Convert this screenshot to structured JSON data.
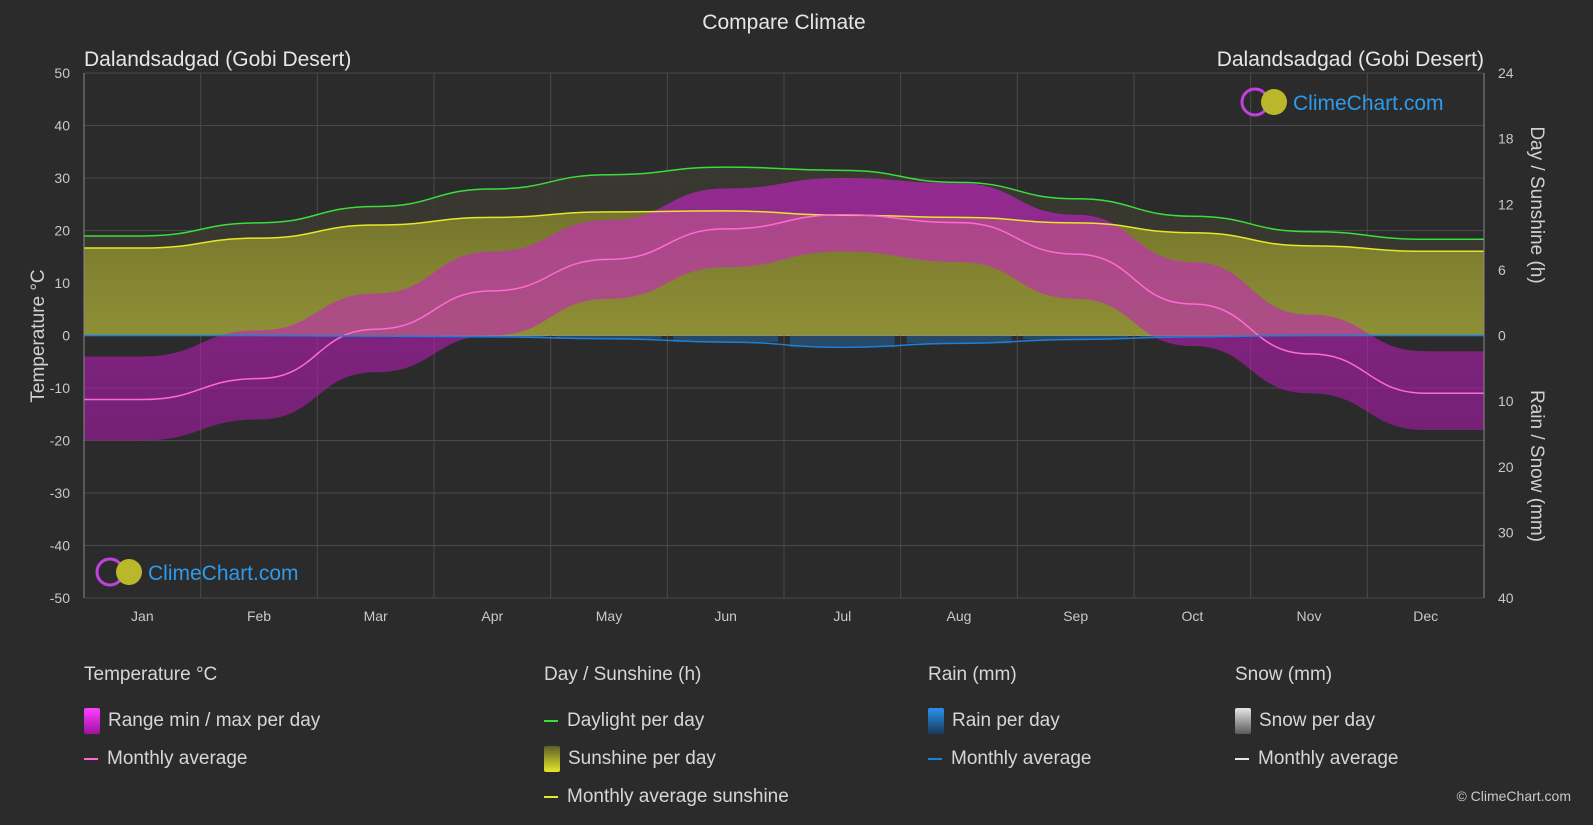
{
  "title": "Compare Climate",
  "location_left": "Dalandsadgad (Gobi Desert)",
  "location_right": "Dalandsadgad (Gobi Desert)",
  "watermark": "ClimeChart.com",
  "copyright": "© ClimeChart.com",
  "colors": {
    "background": "#2b2b2b",
    "daylight": "#3ddc3d",
    "sunshine_avg": "#e6e62a",
    "temp_avg": "#ff6ad5",
    "temp_range": "#e01ee0",
    "rain": "#1f7fd8",
    "snow": "#9a9a9a",
    "watermark": "#2e9bea"
  },
  "legend": {
    "temperature": {
      "header": "Temperature °C",
      "range": "Range min / max per day",
      "avg": "Monthly average"
    },
    "sunshine": {
      "header": "Day / Sunshine (h)",
      "daylight": "Daylight per day",
      "sunshine": "Sunshine per day",
      "avg": "Monthly average sunshine"
    },
    "rain": {
      "header": "Rain (mm)",
      "per_day": "Rain per day",
      "avg": "Monthly average"
    },
    "snow": {
      "header": "Snow (mm)",
      "per_day": "Snow per day",
      "avg": "Monthly average"
    }
  },
  "chart_data": {
    "type": "area",
    "categories": [
      "Jan",
      "Feb",
      "Mar",
      "Apr",
      "May",
      "Jun",
      "Jul",
      "Aug",
      "Sep",
      "Oct",
      "Nov",
      "Dec"
    ],
    "axes": {
      "left": {
        "label": "Temperature °C",
        "range": [
          -50,
          50
        ],
        "ticks": [
          50,
          40,
          30,
          20,
          10,
          0,
          -10,
          -20,
          -30,
          -40,
          -50
        ]
      },
      "right_top": {
        "label": "Day / Sunshine (h)",
        "range": [
          0,
          24
        ],
        "ticks": [
          24,
          18,
          12,
          6,
          0
        ]
      },
      "right_bottom": {
        "label": "Rain / Snow (mm)",
        "range": [
          0,
          40
        ],
        "ticks": [
          10,
          20,
          30,
          40
        ]
      }
    },
    "grid": true,
    "series": [
      {
        "name": "Daylight per day",
        "unit": "h",
        "values": [
          9.1,
          10.3,
          11.8,
          13.4,
          14.7,
          15.4,
          15.1,
          14.0,
          12.5,
          10.9,
          9.5,
          8.8
        ]
      },
      {
        "name": "Monthly average sunshine",
        "unit": "h",
        "values": [
          8.0,
          8.9,
          10.1,
          10.8,
          11.3,
          11.4,
          11.0,
          10.8,
          10.3,
          9.4,
          8.2,
          7.7
        ]
      },
      {
        "name": "Temperature monthly average",
        "unit": "°C",
        "values": [
          -12.2,
          -8.2,
          1.2,
          8.5,
          14.5,
          20.3,
          23.0,
          21.5,
          15.5,
          6.0,
          -3.5,
          -11.0
        ]
      },
      {
        "name": "Temperature max per day (typical)",
        "unit": "°C",
        "values": [
          -4,
          1,
          8,
          16,
          22,
          28,
          30,
          29,
          23,
          14,
          4,
          -3
        ]
      },
      {
        "name": "Temperature min per day (typical)",
        "unit": "°C",
        "values": [
          -20,
          -16,
          -7,
          0,
          7,
          13,
          16,
          14,
          7,
          -2,
          -11,
          -18
        ]
      },
      {
        "name": "Rain monthly average",
        "unit": "mm",
        "values": [
          0.0,
          0.0,
          0.1,
          0.2,
          0.5,
          1.0,
          1.8,
          1.2,
          0.6,
          0.2,
          0.0,
          0.0
        ]
      },
      {
        "name": "Snow monthly average",
        "unit": "mm",
        "values": [
          0.1,
          0.1,
          0.1,
          0.1,
          0.0,
          0.0,
          0.0,
          0.0,
          0.0,
          0.1,
          0.1,
          0.1
        ]
      }
    ]
  }
}
